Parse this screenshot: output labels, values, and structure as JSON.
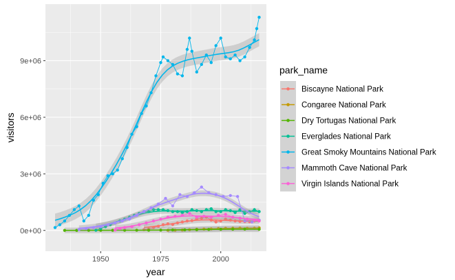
{
  "chart_data": {
    "type": "line",
    "xlabel": "year",
    "ylabel": "visitors",
    "xlim": [
      1927,
      2019
    ],
    "ylim": [
      -1100000,
      12000000
    ],
    "x_ticks": [
      1950,
      1975,
      2000
    ],
    "x_tick_labels": [
      "1950",
      "1975",
      "2000"
    ],
    "y_ticks": [
      0,
      3000000,
      6000000,
      9000000
    ],
    "y_tick_labels": [
      "0e+00",
      "3e+06",
      "6e+06",
      "9e+06"
    ],
    "grid": true,
    "smooth": true,
    "legend": {
      "title": "park_name",
      "position": "right"
    },
    "series": [
      {
        "name": "Biscayne National Park",
        "color": "#F8766D",
        "x": [
          1968,
          1970,
          1972,
          1974,
          1976,
          1978,
          1980,
          1982,
          1984,
          1986,
          1988,
          1990,
          1992,
          1994,
          1996,
          1998,
          2000,
          2002,
          2004,
          2006,
          2008,
          2010,
          2012,
          2014,
          2016
        ],
        "y": [
          40000,
          80000,
          150000,
          220000,
          300000,
          350000,
          320000,
          400000,
          450000,
          500000,
          520000,
          600000,
          650000,
          700000,
          550000,
          450000,
          500000,
          600000,
          550000,
          500000,
          480000,
          470000,
          460000,
          500000,
          520000
        ]
      },
      {
        "name": "Congaree National Park",
        "color": "#C49A00",
        "x": [
          1978,
          1981,
          1984,
          1987,
          1990,
          1993,
          1996,
          1999,
          2002,
          2005,
          2008,
          2011,
          2014,
          2016
        ],
        "y": [
          8000,
          12000,
          20000,
          40000,
          60000,
          70000,
          80000,
          100000,
          110000,
          120000,
          125000,
          110000,
          120000,
          140000
        ]
      },
      {
        "name": "Dry Tortugas National Park",
        "color": "#53B400",
        "x": [
          1935,
          1940,
          1945,
          1950,
          1955,
          1960,
          1965,
          1970,
          1975,
          1980,
          1985,
          1990,
          1995,
          2000,
          2005,
          2010,
          2016
        ],
        "y": [
          2000,
          3000,
          5000,
          6000,
          8000,
          10000,
          12000,
          15000,
          18000,
          25000,
          30000,
          40000,
          55000,
          60000,
          65000,
          70000,
          60000
        ]
      },
      {
        "name": "Everglades National Park",
        "color": "#00C094",
        "x": [
          1948,
          1950,
          1952,
          1954,
          1956,
          1958,
          1960,
          1962,
          1964,
          1966,
          1968,
          1970,
          1972,
          1974,
          1976,
          1978,
          1980,
          1982,
          1984,
          1986,
          1988,
          1990,
          1992,
          1994,
          1996,
          1998,
          2000,
          2002,
          2004,
          2006,
          2008,
          2010,
          2012,
          2014,
          2016
        ],
        "y": [
          10000,
          100000,
          200000,
          300000,
          400000,
          500000,
          600000,
          700000,
          800000,
          900000,
          1000000,
          1000000,
          1100000,
          1100000,
          1100000,
          1050000,
          1000000,
          1000000,
          950000,
          1000000,
          1100000,
          1050000,
          1000000,
          1100000,
          1150000,
          1000000,
          1000000,
          1100000,
          1050000,
          950000,
          1100000,
          900000,
          1000000,
          1100000,
          1000000
        ]
      },
      {
        "name": "Great Smoky Mountains National Park",
        "color": "#00B6EB",
        "x": [
          1931,
          1933,
          1935,
          1937,
          1939,
          1941,
          1943,
          1945,
          1947,
          1949,
          1951,
          1953,
          1955,
          1957,
          1959,
          1961,
          1963,
          1965,
          1967,
          1969,
          1971,
          1973,
          1975,
          1976,
          1978,
          1980,
          1982,
          1984,
          1986,
          1987,
          1988,
          1990,
          1992,
          1994,
          1996,
          1998,
          2000,
          2002,
          2004,
          2006,
          2008,
          2010,
          2012,
          2014,
          2015,
          2016
        ],
        "y": [
          150000,
          300000,
          500000,
          800000,
          1100000,
          1300000,
          500000,
          800000,
          1600000,
          1900000,
          2500000,
          2900000,
          3000000,
          3200000,
          3800000,
          4400000,
          5100000,
          5500000,
          6200000,
          6600000,
          7300000,
          8200000,
          8900000,
          9200000,
          9000000,
          8800000,
          8300000,
          8200000,
          9600000,
          10200000,
          9500000,
          8400000,
          8800000,
          9300000,
          8900000,
          9800000,
          10200000,
          9200000,
          9100000,
          9300000,
          9000000,
          9200000,
          9700000,
          10100000,
          10700000,
          11300000
        ]
      },
      {
        "name": "Mammoth Cave National Park",
        "color": "#A58AFF",
        "x": [
          1941,
          1944,
          1947,
          1950,
          1953,
          1956,
          1959,
          1962,
          1965,
          1968,
          1971,
          1974,
          1977,
          1980,
          1983,
          1986,
          1989,
          1992,
          1995,
          1998,
          2001,
          2004,
          2007,
          2010,
          2013,
          2016
        ],
        "y": [
          50000,
          100000,
          150000,
          200000,
          300000,
          400000,
          500000,
          600000,
          800000,
          1000000,
          1200000,
          1400000,
          1700000,
          1300000,
          1900000,
          1800000,
          2000000,
          2300000,
          2000000,
          1900000,
          1800000,
          1850000,
          1800000,
          500000,
          450000,
          550000
        ]
      },
      {
        "name": "Virgin Islands National Park",
        "color": "#FB61D7",
        "x": [
          1956,
          1958,
          1960,
          1963,
          1966,
          1969,
          1972,
          1975,
          1978,
          1981,
          1984,
          1987,
          1990,
          1993,
          1996,
          1999,
          2002,
          2005,
          2008,
          2011,
          2014,
          2016
        ],
        "y": [
          20000,
          100000,
          150000,
          200000,
          300000,
          400000,
          500000,
          600000,
          700000,
          750000,
          800000,
          900000,
          700000,
          750000,
          700000,
          800000,
          850000,
          700000,
          650000,
          600000,
          550000,
          500000
        ]
      }
    ]
  }
}
